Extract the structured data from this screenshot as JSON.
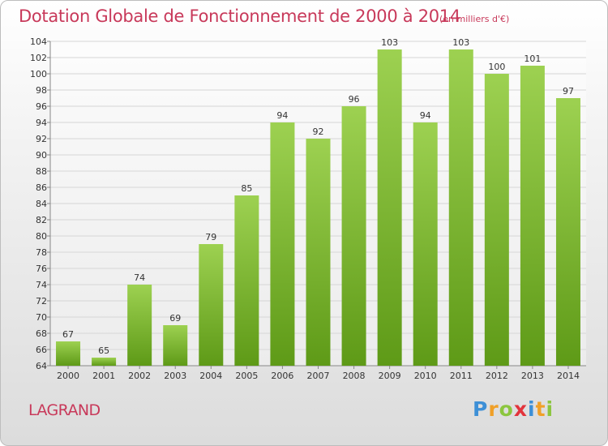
{
  "title": "Dotation Globale de Fonctionnement de 2000 à 2014",
  "subtitle": "(en milliers d'€)",
  "commune": "LAGRAND",
  "logo": {
    "letters": [
      "P",
      "r",
      "o",
      "x",
      "i",
      "t",
      "i"
    ],
    "colors": [
      "#3d8fd6",
      "#f0a028",
      "#8cc63f",
      "#e2343c",
      "#3d8fd6",
      "#f0a028",
      "#8cc63f"
    ]
  },
  "colors": {
    "bar_top": "#9dd151",
    "bar_bottom": "#5e9a17",
    "grid": "#d6d6d6",
    "axis_text": "#333333"
  },
  "chart_data": {
    "type": "bar",
    "title": "Dotation Globale de Fonctionnement de 2000 à 2014",
    "categories": [
      "2000",
      "2001",
      "2002",
      "2003",
      "2004",
      "2005",
      "2006",
      "2007",
      "2008",
      "2009",
      "2010",
      "2011",
      "2012",
      "2013",
      "2014"
    ],
    "values": [
      67,
      65,
      74,
      69,
      79,
      85,
      94,
      92,
      96,
      103,
      94,
      103,
      100,
      101,
      97
    ],
    "ylim": [
      64,
      104
    ],
    "ytick_step": 2,
    "grid": true
  }
}
